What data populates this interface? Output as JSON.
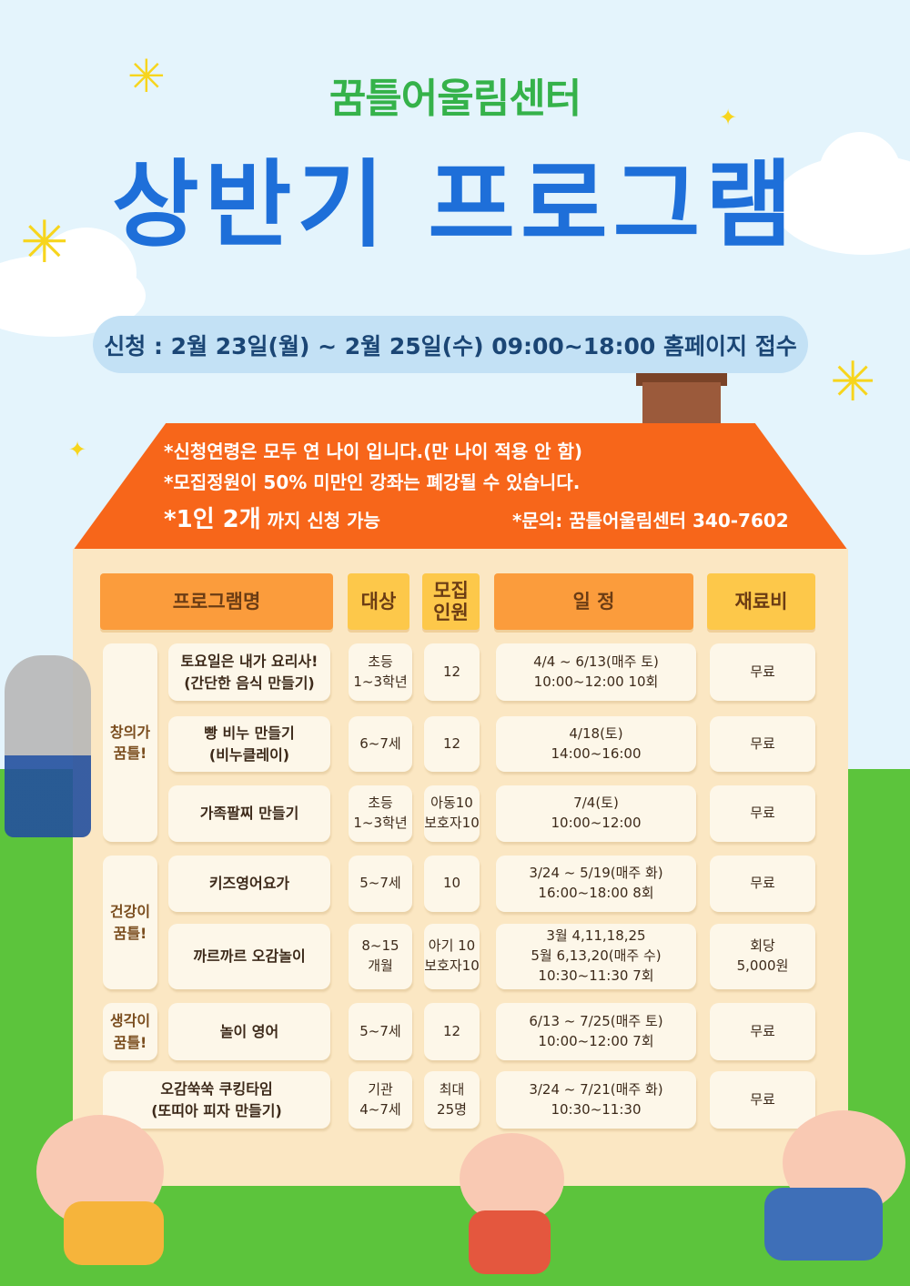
{
  "header": {
    "center_name": "꿈틀어울림센터",
    "title": "상반기 프로그램",
    "application": "신청 : 2월 23일(월) ~ 2월 25일(수) 09:00~18:00 홈페이지 접수"
  },
  "notes": {
    "age": "*신청연령은 모두 연 나이 입니다.(만 나이 적용 안 함)",
    "closing": "*모집정원이 50% 미만인 강좌는 폐강될 수 있습니다.",
    "limit_bold": "*1인 2개",
    "limit_rest": " 까지 신청 가능",
    "contact": "*문의: 꿈틀어울림센터 340-7602"
  },
  "colors": {
    "accent_blue": "#1e6fd9",
    "green": "#35b24a",
    "roof": "#f7661a",
    "header_orange": "#fb9c3c",
    "header_yellow": "#fdc84a"
  },
  "table": {
    "headers": [
      "프로그램명",
      "대상",
      "모집\n인원",
      "일   정",
      "재료비"
    ],
    "categories": [
      {
        "label": "창의가\n꿈틀!",
        "rows": [
          0,
          1,
          2
        ]
      },
      {
        "label": "건강이\n꿈틀!",
        "rows": [
          3,
          4
        ]
      },
      {
        "label": "생각이\n꿈틀!",
        "rows": [
          5
        ]
      }
    ],
    "rows": [
      {
        "name": "토요일은 내가 요리사!\n(간단한 음식 만들기)",
        "target": "초등\n1~3학년",
        "capacity": "12",
        "schedule": "4/4 ~ 6/13(매주 토)\n10:00~12:00 10회",
        "fee": "무료"
      },
      {
        "name": "빵 비누 만들기\n(비누클레이)",
        "target": "6~7세",
        "capacity": "12",
        "schedule": "4/18(토)\n14:00~16:00",
        "fee": "무료"
      },
      {
        "name": "가족팔찌 만들기",
        "target": "초등\n1~3학년",
        "capacity": "아동10\n보호자10",
        "schedule": "7/4(토)\n10:00~12:00",
        "fee": "무료"
      },
      {
        "name": "키즈영어요가",
        "target": "5~7세",
        "capacity": "10",
        "schedule": "3/24 ~ 5/19(매주 화)\n16:00~18:00 8회",
        "fee": "무료"
      },
      {
        "name": "까르까르 오감놀이",
        "target": "8~15\n개월",
        "capacity": "아기 10\n보호자10",
        "schedule": "3월 4,11,18,25\n5월 6,13,20(매주 수)\n10:30~11:30 7회",
        "fee": "회당\n5,000원"
      },
      {
        "name": "놀이 영어",
        "target": "5~7세",
        "capacity": "12",
        "schedule": "6/13 ~ 7/25(매주 토)\n10:00~12:00 7회",
        "fee": "무료"
      },
      {
        "name": "오감쑥쑥 쿠킹타임\n(또띠아 피자 만들기)",
        "target": "기관\n4~7세",
        "capacity": "최대\n25명",
        "schedule": "3/24 ~ 7/21(매주 화)\n10:30~11:30",
        "fee": "무료"
      }
    ]
  }
}
